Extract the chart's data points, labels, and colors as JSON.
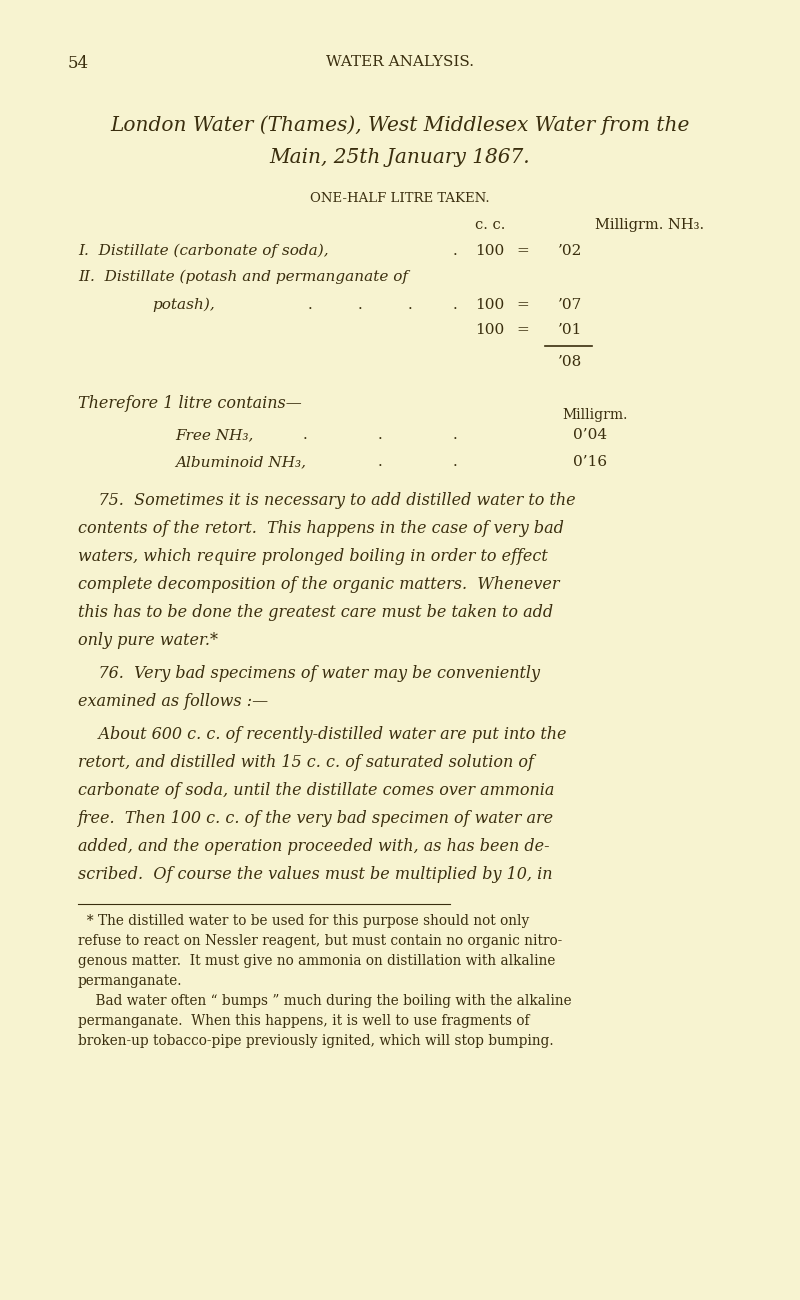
{
  "background_color": "#f7f3d0",
  "text_color": "#3a2e0e",
  "page_number": "54",
  "header": "WATER ANALYSIS.",
  "title_line1": "London Water (Thames), West Middlesex Water from the",
  "title_line2": "Main, 25th January 1867.",
  "subtitle": "ONE-HALF LITRE TAKEN.",
  "col_cc": "c. c.",
  "col_milligrm": "Milligrm. NH₃.",
  "row1_label": "I.  Distillate (carbonate of soda),",
  "row1_dot": ".",
  "row1_cc": "100",
  "row1_eq": "=",
  "row1_val": "’02",
  "row2_label": "II.  Distillate (potash and permanganate of",
  "row2_indent": "potash),",
  "row2_dot1": ".",
  "row2_dot2": ".",
  "row2_dot3": ".",
  "row2_dot4": ".",
  "row2_cc": "100",
  "row2_eq": "=",
  "row2_val": "’07",
  "row3_cc": "100",
  "row3_eq": "=",
  "row3_val": "’01",
  "sum_val": "’08",
  "therefore": "Therefore 1 litre contains—",
  "milligrm2": "Milligrm.",
  "free_label": "Free NH₃,",
  "free_val": "0’04",
  "alb_label": "Albuminoid NH₃,",
  "alb_val": "0’16",
  "para75_lines": [
    "    75.  Sometimes it is necessary to add distilled water to the",
    "contents of the retort.  This happens in the case of very bad",
    "waters, which require prolonged boiling in order to effect",
    "complete decomposition of the organic matters.  Whenever",
    "this has to be done the greatest care must be taken to add",
    "only pure water.*"
  ],
  "para76_line1": "    76.  Very bad specimens of water may be conveniently",
  "para76_line2": "examined as follows :—",
  "para76b_lines": [
    "    About 600 c. c. of recently-distilled water are put into the",
    "retort, and distilled with 15 c. c. of saturated solution of",
    "carbonate of soda, until the distillate comes over ammonia",
    "free.  Then 100 c. c. of the very bad specimen of water are",
    "added, and the operation proceeded with, as has been de-",
    "scribed.  Of course the values must be multiplied by 10, in"
  ],
  "fn_lines": [
    "  * The distilled water to be used for this purpose should not only",
    "refuse to react on Nessler reagent, but must contain no organic nitro-",
    "genous matter.  It must give no ammonia on distillation with alkaline",
    "permanganate.",
    "    Bad water often “ bumps ” much during the boiling with the alkaline",
    "permanganate.  When this happens, it is well to use fragments of",
    "broken-up tobacco-pipe previously ignited, which will stop bumping."
  ]
}
